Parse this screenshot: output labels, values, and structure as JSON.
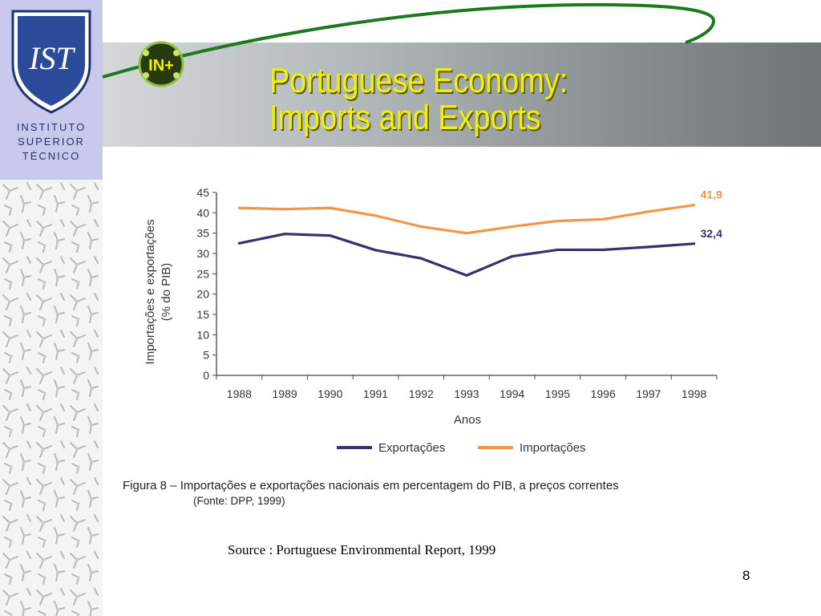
{
  "logo": {
    "letters": "IST",
    "line1": "INSTITUTO",
    "line2": "SUPERIOR",
    "line3": "TÉCNICO"
  },
  "badge": {
    "text": "IN+"
  },
  "title": {
    "line1": "Portuguese Economy:",
    "line2": "Imports and Exports"
  },
  "chart_data": {
    "type": "line",
    "x": [
      "1988",
      "1989",
      "1990",
      "1991",
      "1992",
      "1993",
      "1994",
      "1995",
      "1996",
      "1997",
      "1998"
    ],
    "xlabel": "Anos",
    "ylabel_line1": "Importações e exportações",
    "ylabel_line2": "(% do PIB)",
    "ylim": [
      0,
      45
    ],
    "yticks": [
      0,
      5,
      10,
      15,
      20,
      25,
      30,
      35,
      40,
      45
    ],
    "grid": false,
    "legend_position": "bottom",
    "series": [
      {
        "name": "Exportações",
        "color": "#3b2f6e",
        "values": [
          32.5,
          34.8,
          34.4,
          30.8,
          28.8,
          24.6,
          29.3,
          30.9,
          30.9,
          31.6,
          32.4
        ],
        "end_label": "32,4"
      },
      {
        "name": "Importações",
        "color": "#f0964a",
        "values": [
          41.2,
          40.9,
          41.2,
          39.3,
          36.6,
          35.0,
          36.6,
          38.0,
          38.4,
          40.3,
          41.9
        ],
        "end_label": "41,9"
      }
    ]
  },
  "caption": {
    "line1": "Figura 8 – Importações e exportações nacionais em percentagem do PIB, a preços correntes",
    "line2": "(Fonte: DPP, 1999)"
  },
  "source": "Source : Portuguese Environmental Report, 1999",
  "page_number": "8",
  "colors": {
    "title": "#f2f200",
    "logo_panel": "#c9c9ee",
    "logo_blue": "#22336b",
    "swoosh": "#1b7a1b"
  }
}
